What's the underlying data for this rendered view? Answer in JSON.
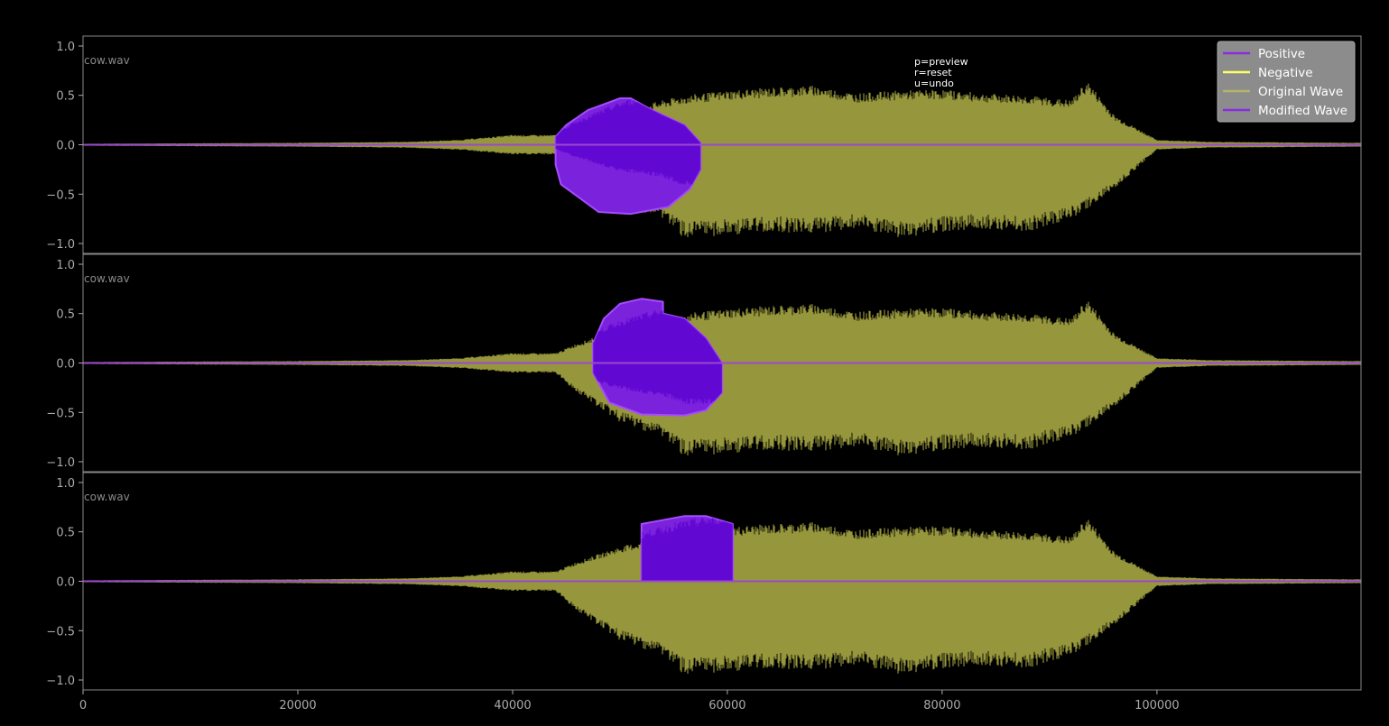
{
  "help": {
    "lines": [
      "p=preview",
      "r=reset",
      "u=undo"
    ]
  },
  "legend": {
    "items": [
      {
        "label": "Positive",
        "color": "#8a2be2"
      },
      {
        "label": "Negative",
        "color": "#ffff66"
      },
      {
        "label": "Original Wave",
        "color": "#b5b56a"
      },
      {
        "label": "Modified Wave",
        "color": "#8a2be2"
      }
    ]
  },
  "colors": {
    "background": "#000000",
    "axes_edge": "#888888",
    "tick": "#aaaaaa",
    "original_wave": "#96963c",
    "modified_wave": "#9a48d0",
    "selection_fill": "#7b22dc",
    "selection_dark": "#5a00d0",
    "selection_edge": "#a64cff"
  },
  "chart_data": [
    {
      "type": "line",
      "title": "cow.wav",
      "xlabel": "",
      "ylabel": "",
      "xlim": [
        0,
        119000
      ],
      "ylim": [
        -1.1,
        1.1
      ],
      "yticks": [
        "1.0",
        "0.5",
        "0.0",
        "−0.5",
        "−1.0"
      ],
      "envelope": {
        "x": [
          0,
          10000,
          20000,
          30000,
          35000,
          40000,
          44000,
          46000,
          50000,
          54000,
          56000,
          60000,
          64000,
          68000,
          72000,
          76000,
          80000,
          84000,
          88000,
          92000,
          93500,
          96000,
          100000,
          105000,
          119000
        ],
        "upper": [
          0.01,
          0.015,
          0.02,
          0.03,
          0.05,
          0.1,
          0.1,
          0.2,
          0.35,
          0.45,
          0.5,
          0.55,
          0.58,
          0.6,
          0.52,
          0.55,
          0.56,
          0.52,
          0.5,
          0.45,
          0.65,
          0.3,
          0.05,
          0.03,
          0.02
        ],
        "lower": [
          -0.01,
          -0.015,
          -0.02,
          -0.03,
          -0.05,
          -0.1,
          -0.1,
          -0.3,
          -0.6,
          -0.75,
          -0.95,
          -0.92,
          -0.88,
          -0.9,
          -0.85,
          -0.95,
          -0.88,
          -0.85,
          -0.88,
          -0.75,
          -0.65,
          -0.45,
          -0.05,
          -0.03,
          -0.02
        ]
      },
      "selection": {
        "type": "positive",
        "outline": [
          [
            44000,
            0.08
          ],
          [
            45000,
            0.2
          ],
          [
            47000,
            0.35
          ],
          [
            50000,
            0.47
          ],
          [
            51000,
            0.47
          ],
          [
            52500,
            0.38
          ],
          [
            54000,
            0.3
          ],
          [
            56000,
            0.2
          ],
          [
            57500,
            0.02
          ],
          [
            57500,
            -0.25
          ],
          [
            56500,
            -0.45
          ],
          [
            54500,
            -0.63
          ],
          [
            51000,
            -0.7
          ],
          [
            48000,
            -0.68
          ],
          [
            46000,
            -0.52
          ],
          [
            44500,
            -0.4
          ],
          [
            44000,
            -0.2
          ]
        ]
      }
    },
    {
      "type": "line",
      "title": "cow.wav",
      "xlabel": "",
      "ylabel": "",
      "xlim": [
        0,
        119000
      ],
      "ylim": [
        -1.1,
        1.1
      ],
      "yticks": [
        "1.0",
        "0.5",
        "0.0",
        "−0.5",
        "−1.0"
      ],
      "envelope": {
        "x": [
          0,
          10000,
          20000,
          30000,
          35000,
          40000,
          44000,
          46000,
          50000,
          54000,
          56000,
          60000,
          64000,
          68000,
          72000,
          76000,
          80000,
          84000,
          88000,
          92000,
          93500,
          96000,
          100000,
          105000,
          119000
        ],
        "upper": [
          0.01,
          0.015,
          0.02,
          0.03,
          0.05,
          0.1,
          0.1,
          0.2,
          0.35,
          0.45,
          0.5,
          0.55,
          0.58,
          0.6,
          0.52,
          0.55,
          0.56,
          0.52,
          0.5,
          0.45,
          0.65,
          0.3,
          0.05,
          0.03,
          0.02
        ],
        "lower": [
          -0.01,
          -0.015,
          -0.02,
          -0.03,
          -0.05,
          -0.1,
          -0.1,
          -0.3,
          -0.6,
          -0.75,
          -0.95,
          -0.92,
          -0.88,
          -0.9,
          -0.85,
          -0.95,
          -0.88,
          -0.85,
          -0.88,
          -0.75,
          -0.65,
          -0.45,
          -0.05,
          -0.03,
          -0.02
        ]
      },
      "selection": {
        "type": "positive",
        "outline": [
          [
            47500,
            0.2
          ],
          [
            48500,
            0.45
          ],
          [
            50000,
            0.6
          ],
          [
            52000,
            0.65
          ],
          [
            54000,
            0.62
          ],
          [
            54000,
            0.5
          ],
          [
            56000,
            0.45
          ],
          [
            58000,
            0.25
          ],
          [
            59500,
            0.0
          ],
          [
            59500,
            -0.3
          ],
          [
            58000,
            -0.48
          ],
          [
            56000,
            -0.53
          ],
          [
            52000,
            -0.52
          ],
          [
            49000,
            -0.4
          ],
          [
            47500,
            -0.1
          ]
        ]
      }
    },
    {
      "type": "line",
      "title": "cow.wav",
      "xlabel": "",
      "ylabel": "",
      "xlim": [
        0,
        119000
      ],
      "ylim": [
        -1.1,
        1.1
      ],
      "yticks": [
        "1.0",
        "0.5",
        "0.0",
        "−0.5",
        "−1.0"
      ],
      "xticks": [
        "0",
        "20000",
        "40000",
        "60000",
        "80000",
        "100000"
      ],
      "envelope": {
        "x": [
          0,
          10000,
          20000,
          30000,
          35000,
          40000,
          44000,
          46000,
          50000,
          54000,
          56000,
          60000,
          64000,
          68000,
          72000,
          76000,
          80000,
          84000,
          88000,
          92000,
          93500,
          96000,
          100000,
          105000,
          119000
        ],
        "upper": [
          0.01,
          0.015,
          0.02,
          0.03,
          0.05,
          0.1,
          0.1,
          0.2,
          0.35,
          0.45,
          0.5,
          0.55,
          0.58,
          0.6,
          0.52,
          0.55,
          0.56,
          0.52,
          0.5,
          0.45,
          0.65,
          0.3,
          0.05,
          0.03,
          0.02
        ],
        "lower": [
          -0.01,
          -0.015,
          -0.02,
          -0.03,
          -0.05,
          -0.1,
          -0.1,
          -0.3,
          -0.6,
          -0.75,
          -0.95,
          -0.92,
          -0.88,
          -0.9,
          -0.85,
          -0.95,
          -0.88,
          -0.85,
          -0.88,
          -0.75,
          -0.65,
          -0.45,
          -0.05,
          -0.03,
          -0.02
        ]
      },
      "selection": {
        "type": "positive",
        "outline": [
          [
            52000,
            0.0
          ],
          [
            52000,
            0.58
          ],
          [
            53000,
            0.6
          ],
          [
            56000,
            0.66
          ],
          [
            58000,
            0.66
          ],
          [
            60500,
            0.58
          ],
          [
            60500,
            0.0
          ]
        ]
      }
    }
  ]
}
